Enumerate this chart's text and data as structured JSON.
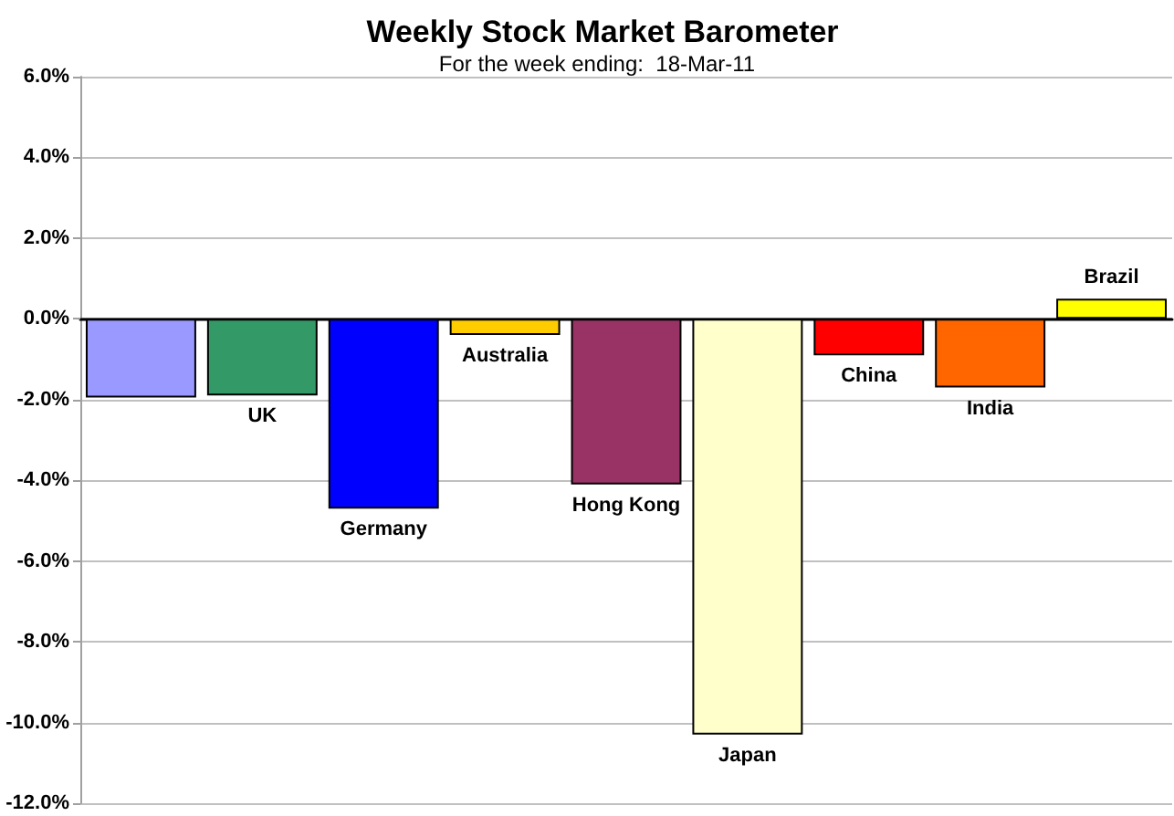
{
  "chart_data": {
    "type": "bar",
    "title": "Weekly Stock Market Barometer",
    "subtitle": "For the week ending:  18-Mar-11",
    "categories": [
      null,
      "UK",
      "Germany",
      "Australia",
      "Hong Kong",
      "Japan",
      "China",
      "India",
      "Brazil"
    ],
    "values": [
      -1.95,
      -1.9,
      -4.7,
      -0.4,
      -4.1,
      -10.3,
      -0.9,
      -1.7,
      0.5
    ],
    "colors": [
      "#9999ff",
      "#339966",
      "#0000ff",
      "#ffcc00",
      "#993366",
      "#ffffcc",
      "#ff0000",
      "#ff6600",
      "#ffff00"
    ],
    "ylim": [
      -12,
      6
    ],
    "yticks": [
      {
        "value": -12,
        "label": "-12.0%"
      },
      {
        "value": -10,
        "label": "-10.0%"
      },
      {
        "value": -8,
        "label": "-8.0%"
      },
      {
        "value": -6,
        "label": "-6.0%"
      },
      {
        "value": -4,
        "label": "-4.0%"
      },
      {
        "value": -2,
        "label": "-2.0%"
      },
      {
        "value": 0,
        "label": "0.0%"
      },
      {
        "value": 2,
        "label": "2.0%"
      },
      {
        "value": 4,
        "label": "4.0%"
      },
      {
        "value": 6,
        "label": "6.0%"
      }
    ],
    "grid": "y"
  }
}
